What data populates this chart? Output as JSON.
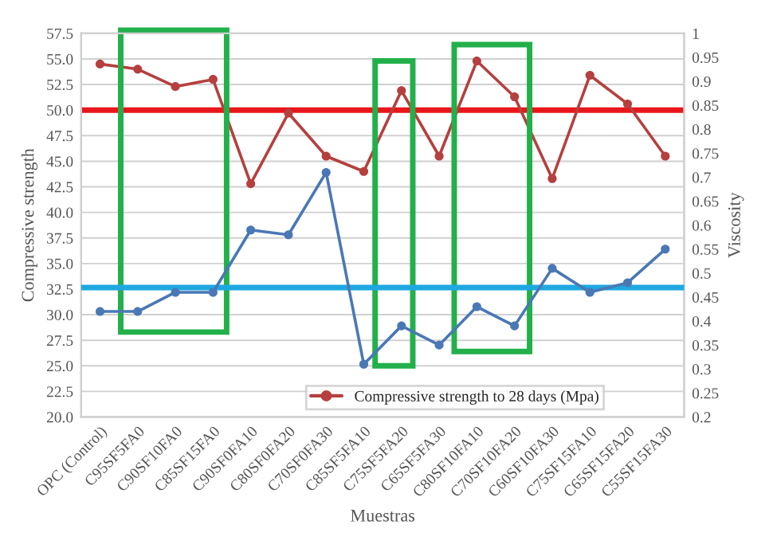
{
  "chart_data": {
    "type": "line",
    "xlabel": "Muestras",
    "ylabel": "Compressive strength",
    "y2label": "Viscosity",
    "categories": [
      "OPC (Control)",
      "C95SF5FA0",
      "C90SF10FA0",
      "C85SF15FA0",
      "C90SF0FA10",
      "C80SF0FA20",
      "C70SF0FA30",
      "C85SF5FA10",
      "C75SF5FA20",
      "C65SF5FA30",
      "C80SF10FA10",
      "C70SF10FA20",
      "C60SF10FA30",
      "C75SF15FA10",
      "C65SF15FA20",
      "C55SF15FA30"
    ],
    "series": [
      {
        "name": "Compressive strength to 28 days (Mpa)",
        "color": "#b5403f",
        "values": [
          54.5,
          54.0,
          52.3,
          53.0,
          42.8,
          49.7,
          45.5,
          44.0,
          51.9,
          45.5,
          54.8,
          51.3,
          43.3,
          53.4,
          50.6,
          45.5
        ]
      },
      {
        "color": "#4a78b5",
        "axis": "y2",
        "values": [
          0.42,
          0.42,
          0.46,
          0.46,
          0.59,
          0.58,
          0.71,
          0.31,
          0.39,
          0.35,
          0.43,
          0.39,
          0.51,
          0.46,
          0.48,
          0.55
        ]
      }
    ],
    "ylim": [
      20,
      57.5
    ],
    "yticks": [
      {
        "value": 20,
        "label": "20.0"
      },
      {
        "value": 22.5,
        "label": "22.5"
      },
      {
        "value": 25,
        "label": "25.0"
      },
      {
        "value": 27.5,
        "label": "27.5"
      },
      {
        "value": 30,
        "label": "30.0"
      },
      {
        "value": 32.5,
        "label": "32.5"
      },
      {
        "value": 35,
        "label": "35.0"
      },
      {
        "value": 37.5,
        "label": "37.5"
      },
      {
        "value": 40,
        "label": "40.0"
      },
      {
        "value": 42.5,
        "label": "42.5"
      },
      {
        "value": 45,
        "label": "45.0"
      },
      {
        "value": 47.5,
        "label": "47.5"
      },
      {
        "value": 50,
        "label": "50.0"
      },
      {
        "value": 52.5,
        "label": "52.5"
      },
      {
        "value": 55,
        "label": "55.0"
      },
      {
        "value": 57.5,
        "label": "57.5"
      }
    ],
    "y2lim": [
      0.2,
      1
    ],
    "y2ticks": [
      0.2,
      0.25,
      0.3,
      0.35,
      0.4,
      0.45,
      0.5,
      0.55,
      0.6,
      0.65,
      0.7,
      0.75,
      0.8,
      0.85,
      0.9,
      0.95,
      1
    ],
    "ref_lines": [
      {
        "axis": "y",
        "value": 50,
        "color": "#e8171b"
      },
      {
        "axis": "y2",
        "value": 0.47,
        "color": "#1ea8e0"
      }
    ],
    "grid": "y",
    "legend": "bottom",
    "marker": "circle",
    "line_style": "solid"
  }
}
